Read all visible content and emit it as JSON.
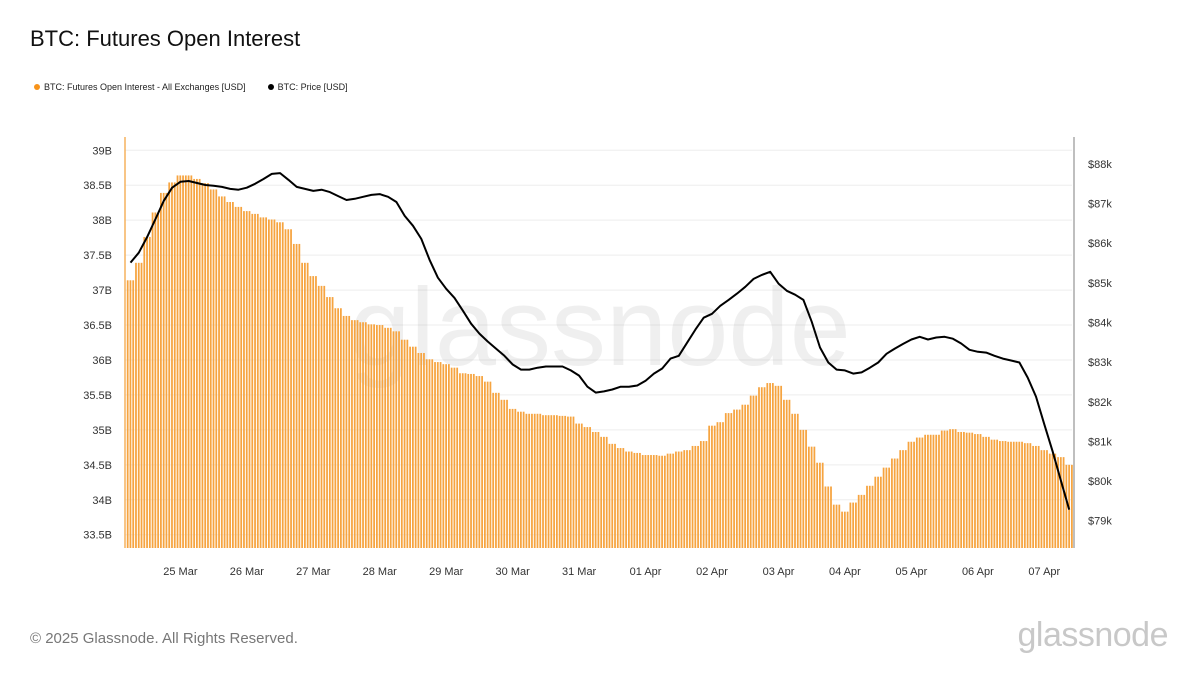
{
  "title": "BTC: Futures Open Interest",
  "footer": "© 2025 Glassnode. All Rights Reserved.",
  "logo": "glassnode",
  "watermark": "glassnode",
  "chart_data": {
    "type": "bar+line",
    "title": "BTC: Futures Open Interest",
    "legend_position": "top-left",
    "grid": true,
    "xlim": [
      "2025-03-24T04:00",
      "2025-04-07T10:00"
    ],
    "x_tick_labels": [
      {
        "date": "2025-03-25T00:00",
        "label": "25 Mar"
      },
      {
        "date": "2025-03-26T00:00",
        "label": "26 Mar"
      },
      {
        "date": "2025-03-27T00:00",
        "label": "27 Mar"
      },
      {
        "date": "2025-03-28T00:00",
        "label": "28 Mar"
      },
      {
        "date": "2025-03-29T00:00",
        "label": "29 Mar"
      },
      {
        "date": "2025-03-30T00:00",
        "label": "30 Mar"
      },
      {
        "date": "2025-03-31T00:00",
        "label": "31 Mar"
      },
      {
        "date": "2025-04-01T00:00",
        "label": "01 Apr"
      },
      {
        "date": "2025-04-02T00:00",
        "label": "02 Apr"
      },
      {
        "date": "2025-04-03T00:00",
        "label": "03 Apr"
      },
      {
        "date": "2025-04-04T00:00",
        "label": "04 Apr"
      },
      {
        "date": "2025-04-05T00:00",
        "label": "05 Apr"
      },
      {
        "date": "2025-04-06T00:00",
        "label": "06 Apr"
      },
      {
        "date": "2025-04-07T00:00",
        "label": "07 Apr"
      }
    ],
    "y_left": {
      "unit": "USD billions",
      "ylim": [
        33.31,
        39.19
      ],
      "ticks": [
        {
          "value": 39,
          "label": "39B"
        },
        {
          "value": 38.5,
          "label": "38.5B"
        },
        {
          "value": 38,
          "label": "38B"
        },
        {
          "value": 37.5,
          "label": "37.5B"
        },
        {
          "value": 37,
          "label": "37B"
        },
        {
          "value": 36.5,
          "label": "36.5B"
        },
        {
          "value": 36,
          "label": "36B"
        },
        {
          "value": 35.5,
          "label": "35.5B"
        },
        {
          "value": 35,
          "label": "35B"
        },
        {
          "value": 34.5,
          "label": "34.5B"
        },
        {
          "value": 34,
          "label": "34B"
        },
        {
          "value": 33.5,
          "label": "33.5B"
        }
      ]
    },
    "y_right": {
      "unit": "USD thousands",
      "ylim": [
        78.31,
        88.68
      ],
      "ticks": [
        {
          "value": 88,
          "label": "$88k"
        },
        {
          "value": 87,
          "label": "$87k"
        },
        {
          "value": 86,
          "label": "$86k"
        },
        {
          "value": 85,
          "label": "$85k"
        },
        {
          "value": 84,
          "label": "$84k"
        },
        {
          "value": 83,
          "label": "$83k"
        },
        {
          "value": 82,
          "label": "$82k"
        },
        {
          "value": 81,
          "label": "$81k"
        },
        {
          "value": 80,
          "label": "$80k"
        },
        {
          "value": 79,
          "label": "$79k"
        }
      ]
    },
    "x": [
      "2025-03-24T06:00",
      "2025-03-24T09:00",
      "2025-03-24T12:00",
      "2025-03-24T15:00",
      "2025-03-24T18:00",
      "2025-03-24T21:00",
      "2025-03-25T00:00",
      "2025-03-25T03:00",
      "2025-03-25T06:00",
      "2025-03-25T09:00",
      "2025-03-25T12:00",
      "2025-03-25T15:00",
      "2025-03-25T18:00",
      "2025-03-25T21:00",
      "2025-03-26T00:00",
      "2025-03-26T03:00",
      "2025-03-26T06:00",
      "2025-03-26T09:00",
      "2025-03-26T12:00",
      "2025-03-26T15:00",
      "2025-03-26T18:00",
      "2025-03-26T21:00",
      "2025-03-27T00:00",
      "2025-03-27T03:00",
      "2025-03-27T06:00",
      "2025-03-27T09:00",
      "2025-03-27T12:00",
      "2025-03-27T15:00",
      "2025-03-27T18:00",
      "2025-03-27T21:00",
      "2025-03-28T00:00",
      "2025-03-28T03:00",
      "2025-03-28T06:00",
      "2025-03-28T09:00",
      "2025-03-28T12:00",
      "2025-03-28T15:00",
      "2025-03-28T18:00",
      "2025-03-28T21:00",
      "2025-03-29T00:00",
      "2025-03-29T03:00",
      "2025-03-29T06:00",
      "2025-03-29T09:00",
      "2025-03-29T12:00",
      "2025-03-29T15:00",
      "2025-03-29T18:00",
      "2025-03-29T21:00",
      "2025-03-30T00:00",
      "2025-03-30T03:00",
      "2025-03-30T06:00",
      "2025-03-30T09:00",
      "2025-03-30T12:00",
      "2025-03-30T15:00",
      "2025-03-30T18:00",
      "2025-03-30T21:00",
      "2025-03-31T00:00",
      "2025-03-31T03:00",
      "2025-03-31T06:00",
      "2025-03-31T09:00",
      "2025-03-31T12:00",
      "2025-03-31T15:00",
      "2025-03-31T18:00",
      "2025-03-31T21:00",
      "2025-04-01T00:00",
      "2025-04-01T03:00",
      "2025-04-01T06:00",
      "2025-04-01T09:00",
      "2025-04-01T12:00",
      "2025-04-01T15:00",
      "2025-04-01T18:00",
      "2025-04-01T21:00",
      "2025-04-02T00:00",
      "2025-04-02T03:00",
      "2025-04-02T06:00",
      "2025-04-02T09:00",
      "2025-04-02T12:00",
      "2025-04-02T15:00",
      "2025-04-02T18:00",
      "2025-04-02T21:00",
      "2025-04-03T00:00",
      "2025-04-03T03:00",
      "2025-04-03T06:00",
      "2025-04-03T09:00",
      "2025-04-03T12:00",
      "2025-04-03T15:00",
      "2025-04-03T18:00",
      "2025-04-03T21:00",
      "2025-04-04T00:00",
      "2025-04-04T03:00",
      "2025-04-04T06:00",
      "2025-04-04T09:00",
      "2025-04-04T12:00",
      "2025-04-04T15:00",
      "2025-04-04T18:00",
      "2025-04-04T21:00",
      "2025-04-05T00:00",
      "2025-04-05T03:00",
      "2025-04-05T06:00",
      "2025-04-05T09:00",
      "2025-04-05T12:00",
      "2025-04-05T15:00",
      "2025-04-05T18:00",
      "2025-04-05T21:00",
      "2025-04-06T00:00",
      "2025-04-06T03:00",
      "2025-04-06T06:00",
      "2025-04-06T09:00",
      "2025-04-06T12:00",
      "2025-04-06T15:00",
      "2025-04-06T18:00",
      "2025-04-06T21:00",
      "2025-04-07T00:00",
      "2025-04-07T03:00",
      "2025-04-07T06:00",
      "2025-04-07T09:00"
    ],
    "series": [
      {
        "name": "BTC: Futures Open Interest - All Exchanges [USD]",
        "type": "bar",
        "axis": "left",
        "color": "#f7931a",
        "values": [
          37.14,
          37.39,
          37.76,
          38.11,
          38.39,
          38.54,
          38.64,
          38.64,
          38.59,
          38.53,
          38.44,
          38.34,
          38.26,
          38.19,
          38.13,
          38.09,
          38.04,
          38.01,
          37.97,
          37.87,
          37.66,
          37.39,
          37.2,
          37.06,
          36.9,
          36.74,
          36.63,
          36.57,
          36.54,
          36.51,
          36.5,
          36.46,
          36.41,
          36.29,
          36.19,
          36.1,
          36.01,
          35.97,
          35.94,
          35.89,
          35.81,
          35.8,
          35.77,
          35.69,
          35.53,
          35.43,
          35.3,
          35.26,
          35.23,
          35.23,
          35.21,
          35.21,
          35.2,
          35.19,
          35.09,
          35.04,
          34.97,
          34.9,
          34.8,
          34.74,
          34.69,
          34.67,
          34.64,
          34.64,
          34.63,
          34.66,
          34.69,
          34.71,
          34.77,
          34.84,
          35.06,
          35.11,
          35.24,
          35.29,
          35.36,
          35.49,
          35.61,
          35.67,
          35.63,
          35.43,
          35.23,
          35.0,
          34.76,
          34.53,
          34.19,
          33.93,
          33.83,
          33.96,
          34.07,
          34.2,
          34.33,
          34.46,
          34.59,
          34.71,
          34.83,
          34.89,
          34.93,
          34.93,
          34.99,
          35.01,
          34.97,
          34.96,
          34.94,
          34.9,
          34.86,
          34.84,
          34.83,
          34.83,
          34.81,
          34.77,
          34.71,
          34.66,
          34.61,
          34.5
        ]
      },
      {
        "name": "BTC: Price [USD]",
        "type": "line",
        "axis": "right",
        "color": "#000000",
        "values": [
          85.51,
          85.76,
          86.16,
          86.61,
          87.07,
          87.4,
          87.55,
          87.57,
          87.52,
          87.47,
          87.45,
          87.42,
          87.37,
          87.35,
          87.4,
          87.5,
          87.62,
          87.75,
          87.77,
          87.6,
          87.42,
          87.37,
          87.32,
          87.35,
          87.29,
          87.19,
          87.09,
          87.12,
          87.17,
          87.22,
          87.24,
          87.17,
          87.04,
          86.69,
          86.44,
          86.11,
          85.58,
          85.13,
          84.85,
          84.62,
          84.3,
          83.97,
          83.72,
          83.52,
          83.34,
          83.16,
          82.94,
          82.81,
          82.81,
          82.86,
          82.89,
          82.89,
          82.89,
          82.79,
          82.66,
          82.38,
          82.23,
          82.26,
          82.31,
          82.38,
          82.38,
          82.41,
          82.53,
          82.71,
          82.84,
          83.09,
          83.16,
          83.49,
          83.82,
          84.12,
          84.22,
          84.42,
          84.57,
          84.73,
          84.9,
          85.1,
          85.2,
          85.28,
          84.98,
          84.8,
          84.7,
          84.57,
          84.02,
          83.37,
          82.99,
          82.81,
          82.79,
          82.71,
          82.74,
          82.86,
          82.99,
          83.21,
          83.34,
          83.46,
          83.57,
          83.64,
          83.57,
          83.62,
          83.64,
          83.59,
          83.47,
          83.31,
          83.26,
          83.24,
          83.16,
          83.09,
          83.04,
          82.99,
          82.61,
          82.13,
          81.43,
          80.75,
          80.01,
          79.28
        ]
      }
    ]
  }
}
